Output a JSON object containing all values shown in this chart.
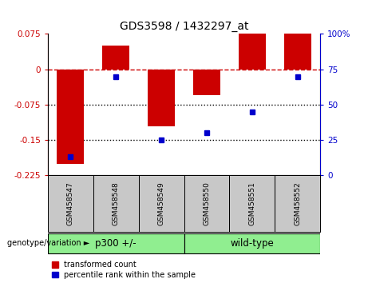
{
  "title": "GDS3598 / 1432297_at",
  "samples": [
    "GSM458547",
    "GSM458548",
    "GSM458549",
    "GSM458550",
    "GSM458551",
    "GSM458552"
  ],
  "red_values": [
    -0.2,
    0.05,
    -0.12,
    -0.055,
    0.075,
    0.075
  ],
  "blue_values": [
    13,
    70,
    25,
    30,
    45,
    70
  ],
  "ylim_left": [
    -0.225,
    0.075
  ],
  "ylim_right": [
    0,
    100
  ],
  "yticks_left": [
    0.075,
    0,
    -0.075,
    -0.15,
    -0.225
  ],
  "yticks_right": [
    100,
    75,
    50,
    25,
    0
  ],
  "groups": [
    {
      "label": "p300 +/-",
      "indices": [
        0,
        1,
        2
      ],
      "color": "#90EE90"
    },
    {
      "label": "wild-type",
      "indices": [
        3,
        4,
        5
      ],
      "color": "#90EE90"
    }
  ],
  "group_label_prefix": "genotype/variation",
  "red_color": "#CC0000",
  "blue_color": "#0000CC",
  "dashed_zero_color": "#CC0000",
  "dotted_line_color": "#000000",
  "bar_width": 0.6,
  "legend_red": "transformed count",
  "legend_blue": "percentile rank within the sample",
  "gray_box_color": "#C8C8C8",
  "fig_width": 4.61,
  "fig_height": 3.54,
  "dpi": 100
}
